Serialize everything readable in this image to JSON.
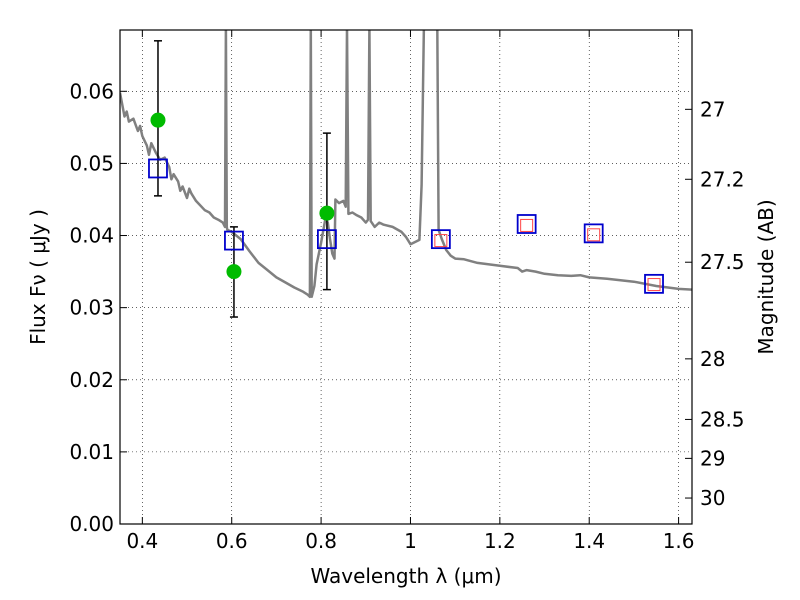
{
  "chart_data": {
    "type": "scatter",
    "xlabel": "Wavelength  λ (μm)",
    "ylabel": "Flux  Fν  ( μJy )",
    "y2label": "Magnitude (AB)",
    "xlim": [
      0.35,
      1.63
    ],
    "ylim": [
      0.0,
      0.0685
    ],
    "x_ticks": [
      0.4,
      0.6,
      0.8,
      1.0,
      1.2,
      1.4,
      1.6
    ],
    "x_tick_labels": [
      "0.4",
      "0.6",
      "0.8",
      "1",
      "1.2",
      "1.4",
      "1.6"
    ],
    "y_ticks": [
      0.0,
      0.01,
      0.02,
      0.03,
      0.04,
      0.05,
      0.06
    ],
    "y_tick_labels": [
      "0.00",
      "0.01",
      "0.02",
      "0.03",
      "0.04",
      "0.05",
      "0.06"
    ],
    "y2_ticks": [
      {
        "label": "27",
        "flux": 0.0575
      },
      {
        "label": "27.2",
        "flux": 0.0478
      },
      {
        "label": "27.5",
        "flux": 0.0363
      },
      {
        "label": "28",
        "flux": 0.0229
      },
      {
        "label": "28.5",
        "flux": 0.0145
      },
      {
        "label": "29",
        "flux": 0.0091
      },
      {
        "label": "30",
        "flux": 0.0036
      }
    ],
    "grid": true,
    "series": [
      {
        "kind": "line",
        "color": "#808080",
        "points": [
          [
            0.35,
            0.0598
          ],
          [
            0.355,
            0.0582
          ],
          [
            0.36,
            0.0565
          ],
          [
            0.365,
            0.0572
          ],
          [
            0.37,
            0.0558
          ],
          [
            0.38,
            0.0562
          ],
          [
            0.39,
            0.0545
          ],
          [
            0.395,
            0.0552
          ],
          [
            0.4,
            0.0538
          ],
          [
            0.41,
            0.0525
          ],
          [
            0.415,
            0.0512
          ],
          [
            0.42,
            0.0528
          ],
          [
            0.43,
            0.0515
          ],
          [
            0.44,
            0.0505
          ],
          [
            0.45,
            0.0508
          ],
          [
            0.46,
            0.0495
          ],
          [
            0.465,
            0.0478
          ],
          [
            0.47,
            0.0485
          ],
          [
            0.48,
            0.0475
          ],
          [
            0.485,
            0.0462
          ],
          [
            0.49,
            0.0468
          ],
          [
            0.5,
            0.0452
          ],
          [
            0.505,
            0.0465
          ],
          [
            0.51,
            0.0458
          ],
          [
            0.52,
            0.0448
          ],
          [
            0.54,
            0.0435
          ],
          [
            0.55,
            0.0432
          ],
          [
            0.56,
            0.0425
          ],
          [
            0.57,
            0.0422
          ],
          [
            0.58,
            0.0418
          ],
          [
            0.585,
            0.0412
          ],
          [
            0.587,
            0.069
          ],
          [
            0.589,
            0.0412
          ],
          [
            0.59,
            0.0408
          ],
          [
            0.6,
            0.0405
          ],
          [
            0.62,
            0.0395
          ],
          [
            0.64,
            0.0378
          ],
          [
            0.66,
            0.0362
          ],
          [
            0.68,
            0.0352
          ],
          [
            0.7,
            0.0342
          ],
          [
            0.72,
            0.0335
          ],
          [
            0.74,
            0.0328
          ],
          [
            0.76,
            0.0322
          ],
          [
            0.77,
            0.0318
          ],
          [
            0.775,
            0.0315
          ],
          [
            0.777,
            0.069
          ],
          [
            0.779,
            0.0315
          ],
          [
            0.785,
            0.033
          ],
          [
            0.79,
            0.036
          ],
          [
            0.8,
            0.039
          ],
          [
            0.81,
            0.0425
          ],
          [
            0.815,
            0.0418
          ],
          [
            0.82,
            0.0395
          ],
          [
            0.825,
            0.0375
          ],
          [
            0.83,
            0.0368
          ],
          [
            0.832,
            0.045
          ],
          [
            0.84,
            0.0445
          ],
          [
            0.85,
            0.0448
          ],
          [
            0.855,
            0.044
          ],
          [
            0.858,
            0.069
          ],
          [
            0.861,
            0.043
          ],
          [
            0.87,
            0.0432
          ],
          [
            0.88,
            0.0428
          ],
          [
            0.89,
            0.0425
          ],
          [
            0.9,
            0.0418
          ],
          [
            0.905,
            0.0422
          ],
          [
            0.908,
            0.069
          ],
          [
            0.911,
            0.042
          ],
          [
            0.92,
            0.0412
          ],
          [
            0.93,
            0.0418
          ],
          [
            0.94,
            0.0415
          ],
          [
            0.96,
            0.0412
          ],
          [
            0.98,
            0.0405
          ],
          [
            0.99,
            0.0398
          ],
          [
            1.0,
            0.0388
          ],
          [
            1.02,
            0.0394
          ],
          [
            1.025,
            0.047
          ],
          [
            1.03,
            0.069
          ],
          [
            1.055,
            0.069
          ],
          [
            1.06,
            0.069
          ],
          [
            1.063,
            0.0408
          ],
          [
            1.07,
            0.0395
          ],
          [
            1.08,
            0.038
          ],
          [
            1.09,
            0.0372
          ],
          [
            1.1,
            0.0368
          ],
          [
            1.12,
            0.0367
          ],
          [
            1.15,
            0.0362
          ],
          [
            1.2,
            0.0358
          ],
          [
            1.24,
            0.0355
          ],
          [
            1.25,
            0.035
          ],
          [
            1.26,
            0.0352
          ],
          [
            1.28,
            0.035
          ],
          [
            1.3,
            0.0347
          ],
          [
            1.33,
            0.0345
          ],
          [
            1.36,
            0.0344
          ],
          [
            1.38,
            0.0345
          ],
          [
            1.4,
            0.0342
          ],
          [
            1.44,
            0.034
          ],
          [
            1.5,
            0.0336
          ],
          [
            1.55,
            0.033
          ],
          [
            1.6,
            0.0326
          ],
          [
            1.63,
            0.0325
          ]
        ]
      },
      {
        "kind": "points",
        "marker": "circle",
        "color": "#00bb00",
        "points": [
          {
            "x": 0.435,
            "y": 0.056,
            "yerr_low": 0.0455,
            "yerr_high": 0.067
          },
          {
            "x": 0.605,
            "y": 0.035,
            "yerr_low": 0.0287,
            "yerr_high": 0.0412
          },
          {
            "x": 0.813,
            "y": 0.0431,
            "yerr_low": 0.0325,
            "yerr_high": 0.0542
          }
        ]
      },
      {
        "kind": "points",
        "marker": "open-square",
        "color": "#0000cc",
        "points": [
          {
            "x": 0.435,
            "y": 0.0493
          },
          {
            "x": 0.605,
            "y": 0.0393
          },
          {
            "x": 0.813,
            "y": 0.0395
          },
          {
            "x": 1.068,
            "y": 0.0395
          },
          {
            "x": 1.26,
            "y": 0.0416
          },
          {
            "x": 1.41,
            "y": 0.0403
          },
          {
            "x": 1.545,
            "y": 0.0333
          }
        ]
      },
      {
        "kind": "points",
        "marker": "small-open-square",
        "color": "#ff4444",
        "points": [
          {
            "x": 1.068,
            "y": 0.0393
          },
          {
            "x": 1.26,
            "y": 0.0414
          },
          {
            "x": 1.41,
            "y": 0.0401
          },
          {
            "x": 1.545,
            "y": 0.0332
          }
        ]
      }
    ]
  }
}
